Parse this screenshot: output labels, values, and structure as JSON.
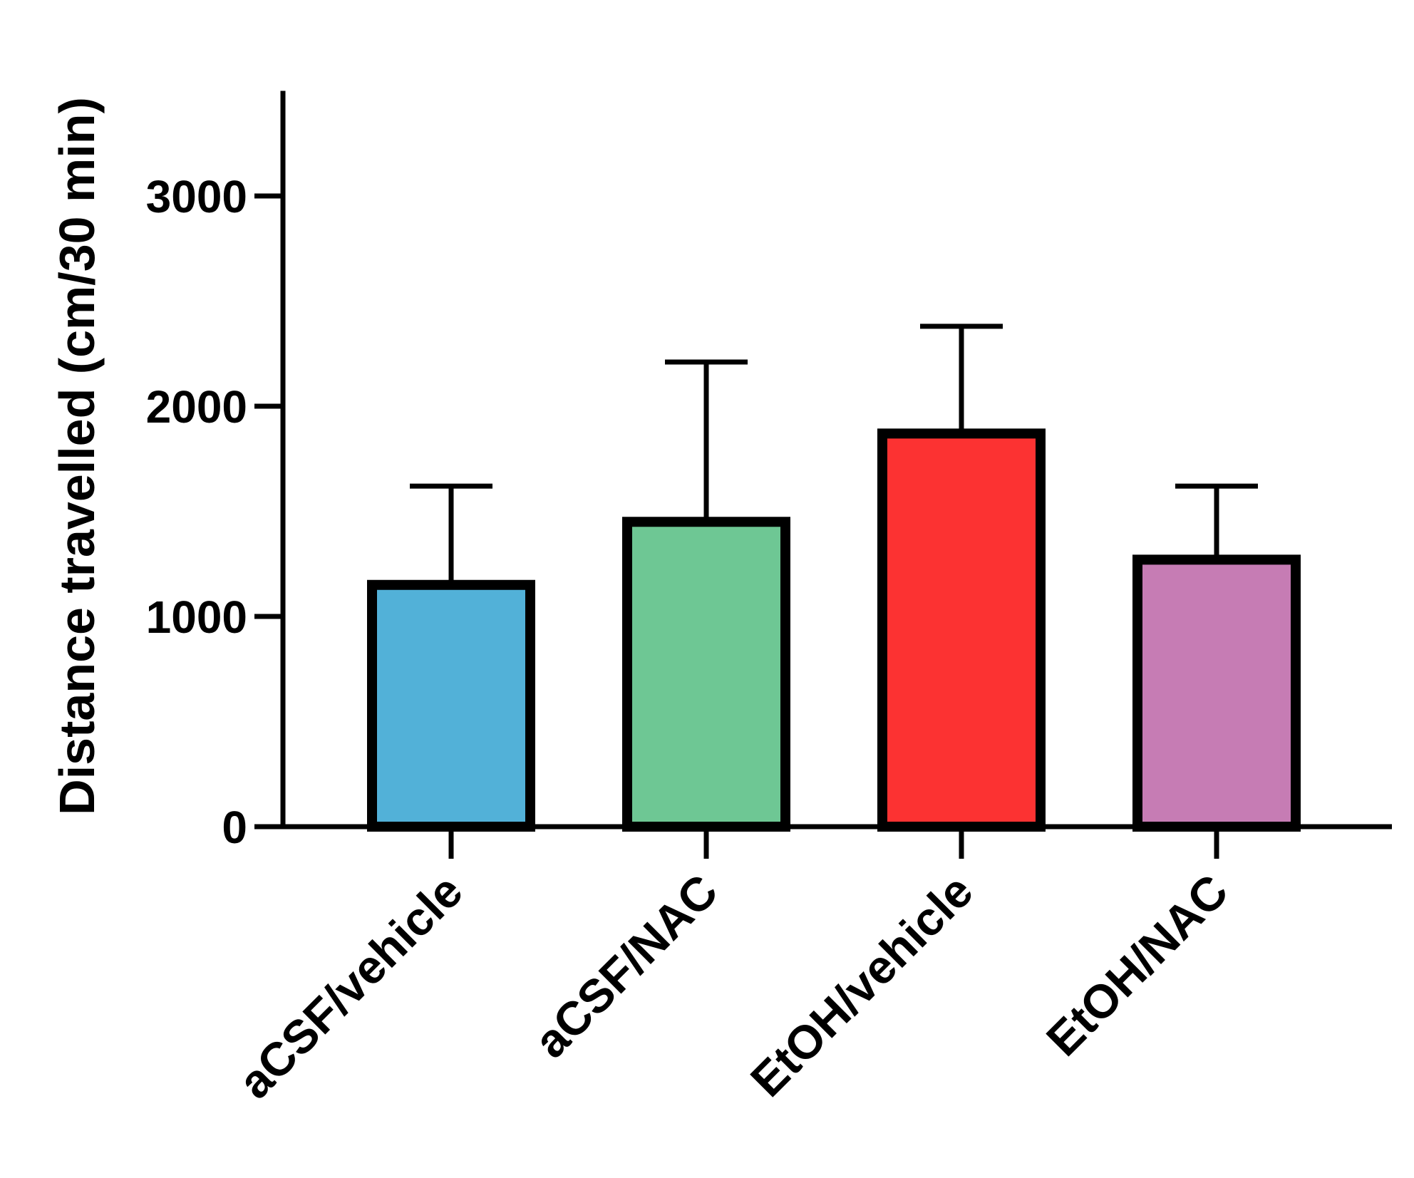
{
  "chart_data": {
    "type": "bar",
    "ylabel": "Distance travelled (cm/30 min)",
    "xlabel": "",
    "ylim": [
      0,
      3500
    ],
    "yticks": [
      0,
      1000,
      2000,
      3000
    ],
    "categories": [
      "aCSF/vehicle",
      "aCSF/NAC",
      "EtOH/vehicle",
      "EtOH/NAC"
    ],
    "values": [
      1150,
      1450,
      1870,
      1270
    ],
    "error_upper": [
      1620,
      2210,
      2380,
      1620
    ],
    "colors": [
      "#52B1D8",
      "#6EC794",
      "#FC3232",
      "#C67CB4"
    ],
    "grid": false,
    "legend": "none"
  }
}
